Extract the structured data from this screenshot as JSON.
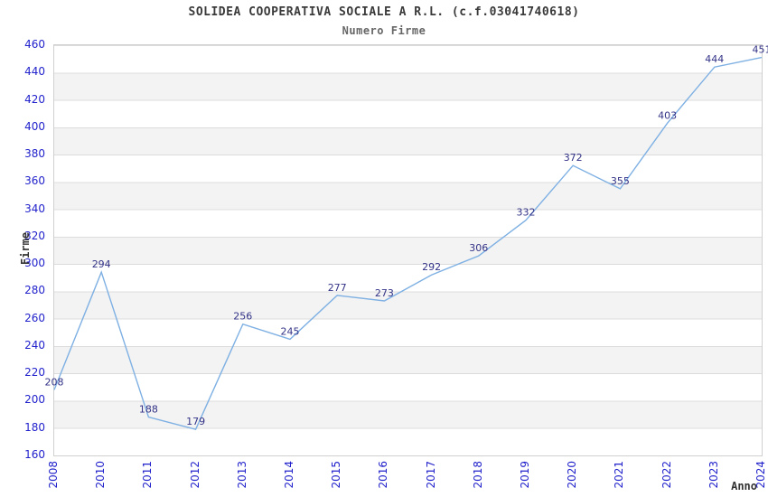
{
  "header": {
    "title": "SOLIDEA COOPERATIVA SOCIALE A R.L. (c.f.03041740618)",
    "subtitle": "Numero Firme"
  },
  "chart_data": {
    "type": "line",
    "title": "SOLIDEA COOPERATIVA SOCIALE A R.L. (c.f.03041740618)",
    "subtitle": "Numero Firme",
    "xlabel": "Anno",
    "ylabel": "Firme",
    "categories": [
      "2008",
      "2010",
      "2011",
      "2012",
      "2013",
      "2014",
      "2015",
      "2016",
      "2017",
      "2018",
      "2019",
      "2020",
      "2021",
      "2022",
      "2023",
      "2024"
    ],
    "values": [
      208,
      294,
      188,
      179,
      256,
      245,
      277,
      273,
      292,
      306,
      332,
      372,
      355,
      403,
      444,
      451
    ],
    "point_labels": [
      "208",
      "294",
      "188",
      "179",
      "256",
      "245",
      "277",
      "273",
      "292",
      "306",
      "332",
      "372",
      "355",
      "403",
      "444",
      "451"
    ],
    "y_ticks": [
      460,
      440,
      420,
      400,
      380,
      360,
      340,
      320,
      300,
      280,
      260,
      240,
      220,
      200,
      180,
      160
    ],
    "ylim": [
      160,
      460
    ],
    "y_tick_step": 20,
    "grid": "horizontal-bands",
    "legend": "none",
    "colors": {
      "line": "#7eb0e3",
      "tick_text": "#2222cc",
      "value_label": "#333388",
      "band_fill": "#f3f3f3",
      "grid_line": "#dcdcdc",
      "plot_border": "#d0d0d0",
      "title_text": "#3a3a3a",
      "subtitle_text": "#666666",
      "axis_title_text": "#333333"
    }
  }
}
